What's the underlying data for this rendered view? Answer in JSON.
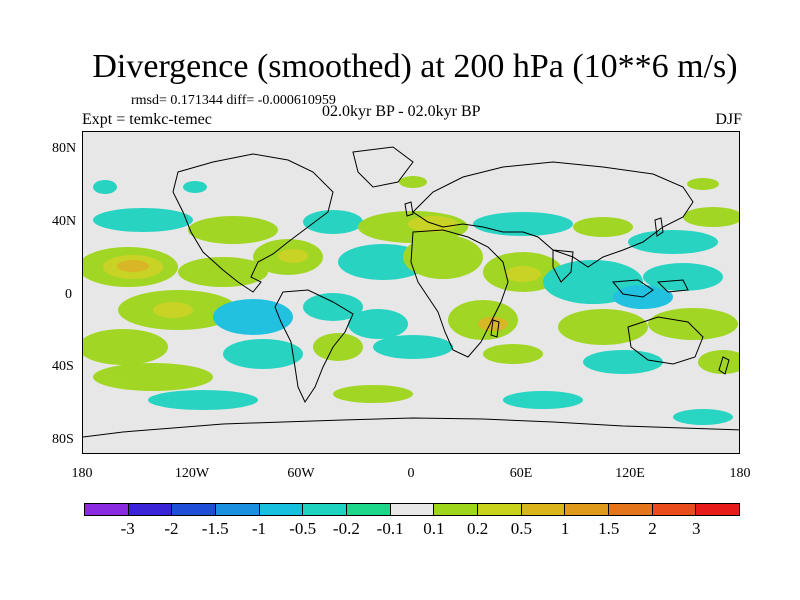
{
  "header": {
    "title": "Divergence (smoothed) at 200 hPa (10**6 m/s)",
    "stats": "rmsd= 0.171344 diff= -0.000610959",
    "experiment": "Expt = temkc-temec",
    "period": "02.0kyr BP - 02.0kyr BP",
    "season": "DJF"
  },
  "map": {
    "lat_labels": [
      "80N",
      "40N",
      "0",
      "40S",
      "80S"
    ],
    "lon_labels": [
      "180",
      "120W",
      "60W",
      "0",
      "60E",
      "120E",
      "180"
    ],
    "background_color": "#e7e7e7"
  },
  "colorbar": {
    "colors": [
      "#8a2be2",
      "#3b23d8",
      "#1e4fd6",
      "#1b8fe0",
      "#18c0e0",
      "#1ed3c0",
      "#1cd68a",
      "#e8e8e8",
      "#9ed61b",
      "#c8d21b",
      "#d9b41b",
      "#e09a1b",
      "#e5751b",
      "#ea4c1b",
      "#e81b1b"
    ],
    "labels": [
      "-3",
      "-2",
      "-1.5",
      "-1",
      "-0.5",
      "-0.2",
      "-0.1",
      "0.1",
      "0.2",
      "0.5",
      "1",
      "1.5",
      "2",
      "3"
    ]
  }
}
